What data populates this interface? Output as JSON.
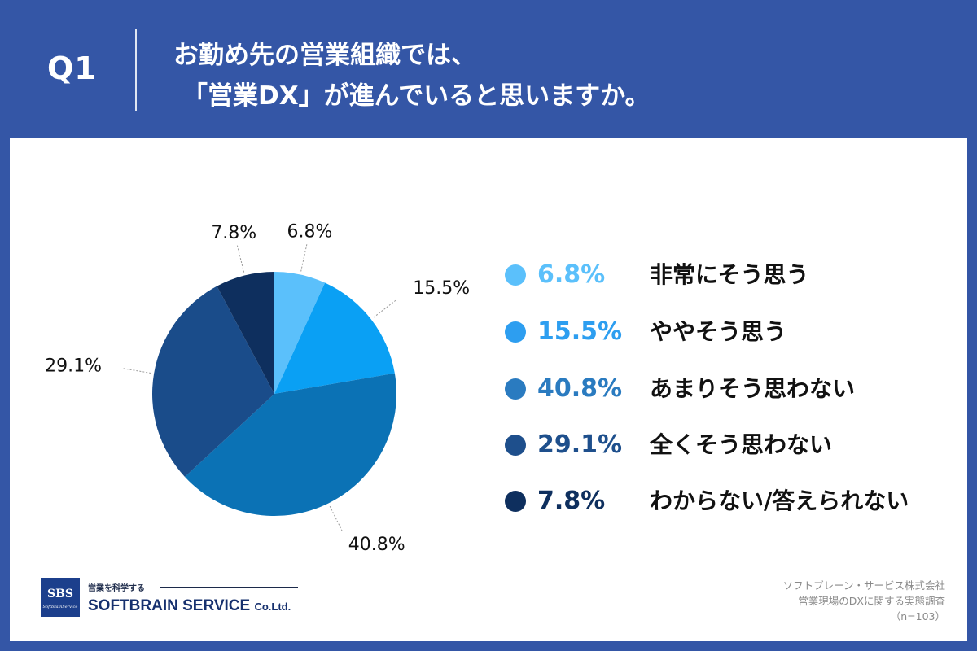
{
  "header": {
    "question_label": "Q1",
    "title_line1": "お勤め先の営業組織では、",
    "title_line2": "「営業DX」が進んでいると思いますか。"
  },
  "chart_data": {
    "type": "pie",
    "title": "",
    "categories": [
      "非常にそう思う",
      "ややそう思う",
      "あまりそう思わない",
      "全くそう思わない",
      "わからない/答えられない"
    ],
    "values": [
      6.8,
      15.5,
      40.8,
      29.1,
      7.8
    ],
    "labels": [
      "6.8%",
      "15.5%",
      "40.8%",
      "29.1%",
      "7.8%"
    ],
    "colors": [
      "#5bc0fb",
      "#0aa0f4",
      "#0b72b5",
      "#1a4c8a",
      "#0e2f5e"
    ],
    "legend_position": "right"
  },
  "legend": [
    {
      "pct": "6.8%",
      "label": "非常にそう思う",
      "color": "#5bc0fb"
    },
    {
      "pct": "15.5%",
      "label": "ややそう思う",
      "color": "#2d9ef0"
    },
    {
      "pct": "40.8%",
      "label": "あまりそう思わない",
      "color": "#2a7bc0"
    },
    {
      "pct": "29.1%",
      "label": "全くそう思わない",
      "color": "#1e4f8c"
    },
    {
      "pct": "7.8%",
      "label": "わからない/答えられない",
      "color": "#0e2f5e"
    }
  ],
  "logo": {
    "mark": "SBS",
    "mark_sub": "SoftbrainService",
    "tagline": "営業を科学する",
    "brand_main": "SOFTBRAIN SERVICE ",
    "brand_suffix": "Co.Ltd."
  },
  "source": {
    "company": "ソフトブレーン・サービス株式会社",
    "survey": "営業現場のDXに関する実態調査",
    "sample": "（n=103）"
  }
}
